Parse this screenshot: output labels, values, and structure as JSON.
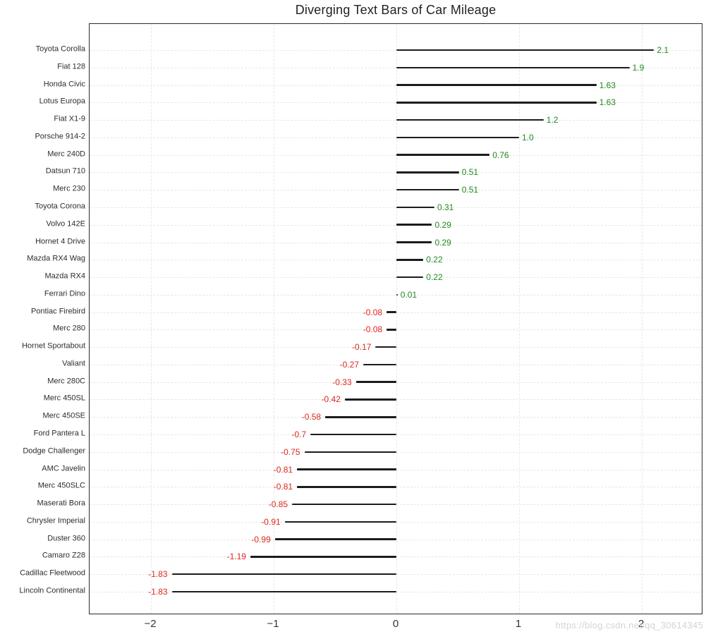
{
  "title": "Diverging Text Bars of Car Mileage",
  "watermark": "https://blog.csdn.net/qq_30614345",
  "colors": {
    "positive_text": "#218a21",
    "negative_text": "#dd281e",
    "bar": "#1c1c1c",
    "grid": "#e7e7e7",
    "frame": "#2b2b2b"
  },
  "chart_data": {
    "type": "bar",
    "orientation": "horizontal-diverging",
    "title": "Diverging Text Bars of Car Mileage",
    "xlabel": "",
    "ylabel": "",
    "xlim": [
      -2.5,
      2.5
    ],
    "grid": true,
    "legend": false,
    "xtick_values": [
      -2,
      -1,
      0,
      1,
      2
    ],
    "xtick_labels": [
      "−2",
      "−1",
      "0",
      "1",
      "2"
    ],
    "categories": [
      "Toyota Corolla",
      "Fiat 128",
      "Honda Civic",
      "Lotus Europa",
      "Fiat X1-9",
      "Porsche 914-2",
      "Merc 240D",
      "Datsun 710",
      "Merc 230",
      "Toyota Corona",
      "Volvo 142E",
      "Hornet 4 Drive",
      "Mazda RX4 Wag",
      "Mazda RX4",
      "Ferrari Dino",
      "Pontiac Firebird",
      "Merc 280",
      "Hornet Sportabout",
      "Valiant",
      "Merc 280C",
      "Merc 450SL",
      "Merc 450SE",
      "Ford Pantera L",
      "Dodge Challenger",
      "AMC Javelin",
      "Merc 450SLC",
      "Maserati Bora",
      "Chrysler Imperial",
      "Duster 360",
      "Camaro Z28",
      "Cadillac Fleetwood",
      "Lincoln Continental"
    ],
    "values": [
      2.1,
      1.9,
      1.63,
      1.63,
      1.2,
      1.0,
      0.76,
      0.51,
      0.51,
      0.31,
      0.29,
      0.29,
      0.22,
      0.22,
      0.01,
      -0.08,
      -0.08,
      -0.17,
      -0.27,
      -0.33,
      -0.42,
      -0.58,
      -0.7,
      -0.75,
      -0.81,
      -0.81,
      -0.85,
      -0.91,
      -0.99,
      -1.19,
      -1.83,
      -1.83
    ],
    "value_labels": [
      "2.1",
      "1.9",
      "1.63",
      "1.63",
      "1.2",
      "1.0",
      "0.76",
      "0.51",
      "0.51",
      "0.31",
      "0.29",
      "0.29",
      "0.22",
      "0.22",
      "0.01",
      "-0.08",
      "-0.08",
      "-0.17",
      "-0.27",
      "-0.33",
      "-0.42",
      "-0.58",
      "-0.7",
      "-0.75",
      "-0.81",
      "-0.81",
      "-0.85",
      "-0.91",
      "-0.99",
      "-1.19",
      "-1.83",
      "-1.83"
    ]
  }
}
